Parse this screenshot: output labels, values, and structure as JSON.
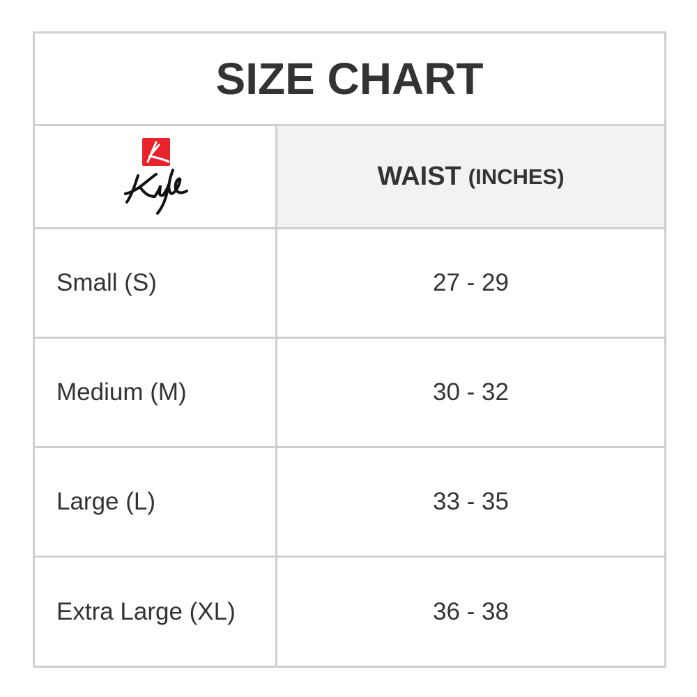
{
  "title": "SIZE CHART",
  "logo": {
    "brand": "Kyle",
    "accent_color": "#e8242a"
  },
  "header": {
    "column_label": "WAIST",
    "unit": "(INCHES)"
  },
  "rows": [
    {
      "size": "Small (S)",
      "waist": "27 - 29"
    },
    {
      "size": "Medium (M)",
      "waist": "30 - 32"
    },
    {
      "size": "Large (L)",
      "waist": "33 - 35"
    },
    {
      "size": "Extra Large (XL)",
      "waist": "36 - 38"
    }
  ]
}
